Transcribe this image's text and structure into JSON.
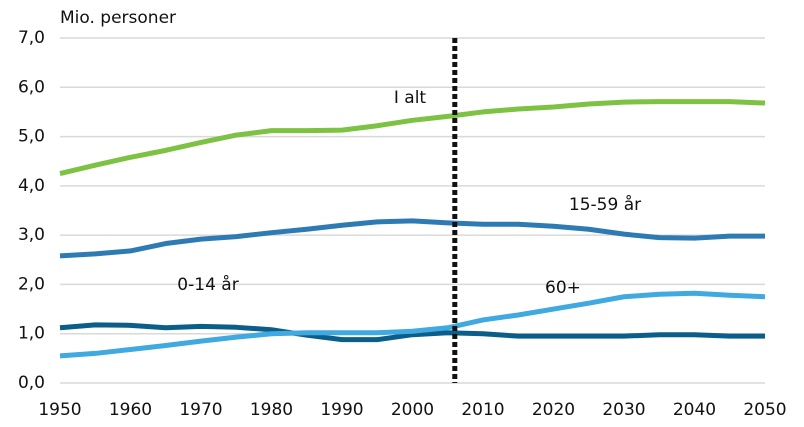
{
  "chart_data": {
    "type": "line",
    "y_label": "Mio. personer",
    "x": [
      1950,
      1955,
      1960,
      1965,
      1970,
      1975,
      1980,
      1985,
      1990,
      1995,
      2000,
      2005,
      2010,
      2015,
      2020,
      2025,
      2030,
      2035,
      2040,
      2045,
      2050
    ],
    "series": [
      {
        "name": "I alt",
        "color": "#7dc242",
        "values": [
          4.25,
          4.42,
          4.58,
          4.72,
          4.88,
          5.03,
          5.12,
          5.12,
          5.13,
          5.22,
          5.33,
          5.41,
          5.5,
          5.56,
          5.6,
          5.66,
          5.7,
          5.71,
          5.71,
          5.71,
          5.68
        ]
      },
      {
        "name": "15-59 år",
        "color": "#2e7bb4",
        "values": [
          2.58,
          2.62,
          2.68,
          2.83,
          2.92,
          2.97,
          3.05,
          3.12,
          3.2,
          3.27,
          3.29,
          3.25,
          3.22,
          3.22,
          3.18,
          3.12,
          3.02,
          2.95,
          2.94,
          2.98,
          2.98
        ]
      },
      {
        "name": "0-14 år",
        "color": "#0b5e8a",
        "values": [
          1.12,
          1.18,
          1.17,
          1.12,
          1.15,
          1.13,
          1.08,
          0.97,
          0.88,
          0.88,
          0.98,
          1.02,
          1.0,
          0.95,
          0.95,
          0.95,
          0.95,
          0.98,
          0.98,
          0.95,
          0.95
        ]
      },
      {
        "name": "60+",
        "color": "#3fa9e0",
        "values": [
          0.55,
          0.6,
          0.68,
          0.76,
          0.85,
          0.93,
          1.0,
          1.02,
          1.02,
          1.02,
          1.05,
          1.12,
          1.28,
          1.38,
          1.5,
          1.62,
          1.75,
          1.8,
          1.82,
          1.78,
          1.75
        ]
      }
    ],
    "vline": 2006,
    "xlim": [
      1950,
      2050
    ],
    "xticks": [
      1950,
      1960,
      1970,
      1980,
      1990,
      2000,
      2010,
      2020,
      2030,
      2040,
      2050
    ],
    "ylim": [
      0,
      7
    ],
    "yticks": [
      {
        "value": 0,
        "label": "0,0"
      },
      {
        "value": 1,
        "label": "1,0"
      },
      {
        "value": 2,
        "label": "2,0"
      },
      {
        "value": 3,
        "label": "3,0"
      },
      {
        "value": 4,
        "label": "4,0"
      },
      {
        "value": 5,
        "label": "5,0"
      },
      {
        "value": 6,
        "label": "6,0"
      },
      {
        "value": 7,
        "label": "7,0"
      }
    ],
    "grid": true
  }
}
